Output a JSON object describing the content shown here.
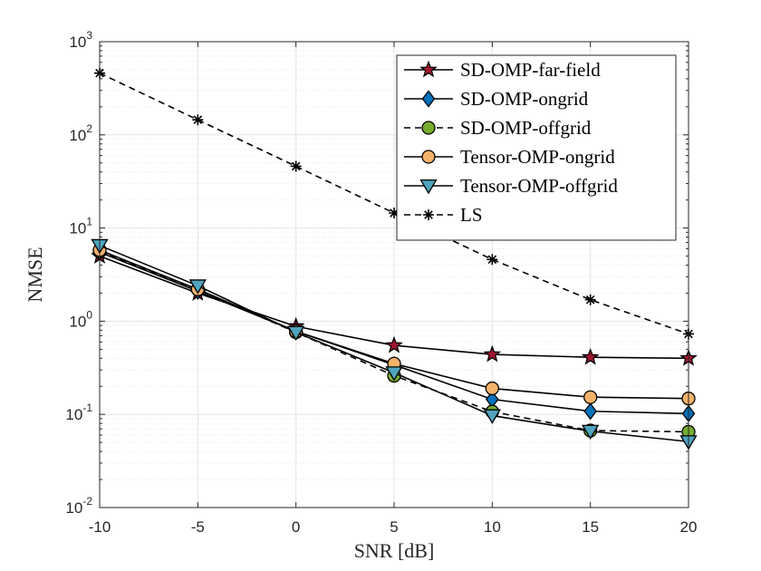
{
  "chart_data": {
    "type": "line",
    "title": "",
    "xlabel": "SNR [dB]",
    "ylabel": "NMSE",
    "yscale": "log",
    "xlim": [
      -10,
      20
    ],
    "ylim": [
      0.01,
      1000
    ],
    "grid": true,
    "legend_position": "top-right",
    "x": [
      -10,
      -5,
      0,
      5,
      10,
      15,
      20
    ],
    "x_tick_labels": [
      "-10",
      "-5",
      "0",
      "5",
      "10",
      "15",
      "20"
    ],
    "y_ticks": [
      {
        "value": 0.01,
        "base": "10",
        "exp": "-2"
      },
      {
        "value": 0.1,
        "base": "10",
        "exp": "-1"
      },
      {
        "value": 1,
        "base": "10",
        "exp": "0"
      },
      {
        "value": 10,
        "base": "10",
        "exp": "1"
      },
      {
        "value": 100,
        "base": "10",
        "exp": "2"
      },
      {
        "value": 1000,
        "base": "10",
        "exp": "3"
      }
    ],
    "series": [
      {
        "name": "SD-OMP-far-field",
        "values": [
          5.0,
          2.0,
          0.88,
          0.55,
          0.44,
          0.41,
          0.4
        ],
        "marker": "star",
        "color": "#a2142f",
        "line": "solid"
      },
      {
        "name": "SD-OMP-ongrid",
        "values": [
          5.5,
          2.1,
          0.78,
          0.34,
          0.145,
          0.108,
          0.102
        ],
        "marker": "diamond",
        "color": "#0072bd",
        "line": "solid"
      },
      {
        "name": "SD-OMP-offgrid",
        "values": [
          5.6,
          2.2,
          0.76,
          0.26,
          0.107,
          0.067,
          0.065
        ],
        "marker": "circle",
        "color": "#77ac30",
        "line": "dashed"
      },
      {
        "name": "Tensor-OMP-ongrid",
        "values": [
          5.8,
          2.2,
          0.78,
          0.35,
          0.19,
          0.153,
          0.148
        ],
        "marker": "circle",
        "color": "#f5b26b",
        "line": "solid"
      },
      {
        "name": "Tensor-OMP-offgrid",
        "values": [
          6.5,
          2.4,
          0.76,
          0.28,
          0.097,
          0.066,
          0.051
        ],
        "marker": "triangle-down",
        "color": "#4fa3bd",
        "line": "solid"
      },
      {
        "name": "LS",
        "values": [
          460,
          145,
          46,
          14.5,
          4.6,
          1.7,
          0.73
        ],
        "marker": "asterisk",
        "color": "#000000",
        "line": "dashed"
      }
    ]
  }
}
